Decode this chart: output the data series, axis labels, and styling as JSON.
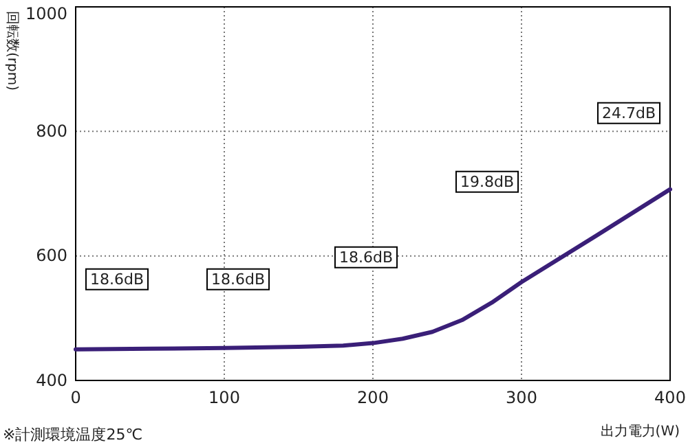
{
  "chart_data": {
    "type": "line",
    "xlabel": "出力電力(W)",
    "ylabel": "回転数(rpm)",
    "x": [
      0,
      50,
      100,
      150,
      180,
      200,
      220,
      240,
      260,
      280,
      300,
      350,
      400
    ],
    "series": [
      {
        "color": "#3a1f78",
        "values": [
          450,
          451,
          452,
          454,
          456,
          460,
          467,
          478,
          497,
          525,
          558,
          632,
          707
        ]
      }
    ],
    "xlim": [
      0,
      400
    ],
    "ylim": [
      400,
      1000
    ],
    "xticks": [
      0,
      100,
      200,
      300,
      400
    ],
    "yticks": [
      400,
      600,
      800,
      1000
    ],
    "grid": true,
    "marker": "none",
    "line_style": "solid",
    "annotations": [
      "18.6dB",
      "18.6dB",
      "18.6dB",
      "19.8dB",
      "24.7dB",
      "※計測環境温度25℃"
    ]
  }
}
